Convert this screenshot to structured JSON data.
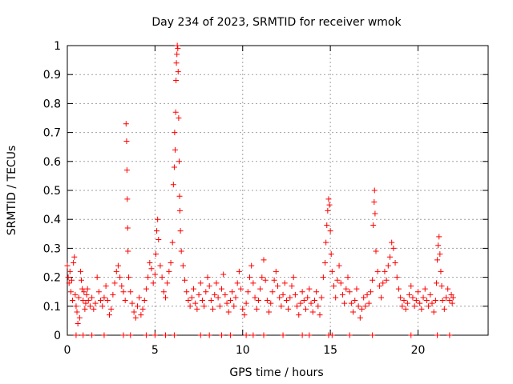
{
  "chart_data": {
    "type": "scatter",
    "title": "Day 234 of 2023, SRMTID for receiver wmok",
    "xlabel": "GPS time / hours",
    "ylabel": "SRMTID / TECUs",
    "xlim": [
      0,
      24
    ],
    "ylim": [
      0,
      1
    ],
    "grid": true,
    "x_ticks": [
      0,
      5,
      10,
      15,
      20
    ],
    "x_tick_labels": [
      "0",
      "5",
      "10",
      "15",
      "20"
    ],
    "y_ticks": [
      0,
      0.1,
      0.2,
      0.3,
      0.4,
      0.5,
      0.6,
      0.7,
      0.8,
      0.9,
      1
    ],
    "y_tick_labels": [
      "0",
      "0.1",
      "0.2",
      "0.3",
      "0.4",
      "0.5",
      "0.6",
      "0.7",
      "0.8",
      "0.9",
      "1"
    ],
    "marker": "+",
    "color": "#ff0000",
    "series": [
      {
        "name": "SRMTID",
        "points": [
          [
            0.0,
            0.24
          ],
          [
            0.05,
            0.2
          ],
          [
            0.1,
            0.18
          ],
          [
            0.15,
            0.22
          ],
          [
            0.2,
            0.15
          ],
          [
            0.25,
            0.19
          ],
          [
            0.3,
            0.12
          ],
          [
            0.35,
            0.25
          ],
          [
            0.4,
            0.27
          ],
          [
            0.45,
            0.14
          ],
          [
            0.5,
            0.1
          ],
          [
            0.55,
            0.08
          ],
          [
            0.6,
            0.04
          ],
          [
            0.65,
            0.13
          ],
          [
            0.7,
            0.06
          ],
          [
            0.75,
            0.22
          ],
          [
            0.8,
            0.19
          ],
          [
            0.85,
            0.16
          ],
          [
            0.9,
            0.12
          ],
          [
            0.95,
            0.15
          ],
          [
            1.0,
            0.09
          ],
          [
            1.05,
            0.11
          ],
          [
            1.1,
            0.14
          ],
          [
            1.15,
            0.16
          ],
          [
            1.2,
            0.12
          ],
          [
            1.3,
            0.1
          ],
          [
            1.4,
            0.13
          ],
          [
            1.5,
            0.09
          ],
          [
            1.6,
            0.11
          ],
          [
            1.7,
            0.2
          ],
          [
            1.8,
            0.15
          ],
          [
            1.9,
            0.12
          ],
          [
            2.0,
            0.1
          ],
          [
            2.1,
            0.13
          ],
          [
            2.2,
            0.17
          ],
          [
            2.3,
            0.12
          ],
          [
            2.4,
            0.07
          ],
          [
            2.5,
            0.09
          ],
          [
            2.6,
            0.14
          ],
          [
            2.7,
            0.18
          ],
          [
            2.8,
            0.22
          ],
          [
            2.9,
            0.24
          ],
          [
            3.0,
            0.2
          ],
          [
            3.1,
            0.17
          ],
          [
            3.2,
            0.15
          ],
          [
            3.3,
            0.12
          ],
          [
            3.35,
            0.73
          ],
          [
            3.38,
            0.67
          ],
          [
            3.4,
            0.57
          ],
          [
            3.42,
            0.47
          ],
          [
            3.44,
            0.37
          ],
          [
            3.46,
            0.29
          ],
          [
            3.5,
            0.2
          ],
          [
            3.6,
            0.15
          ],
          [
            3.7,
            0.11
          ],
          [
            3.8,
            0.08
          ],
          [
            3.9,
            0.06
          ],
          [
            4.0,
            0.1
          ],
          [
            4.1,
            0.13
          ],
          [
            4.2,
            0.07
          ],
          [
            4.3,
            0.09
          ],
          [
            4.4,
            0.12
          ],
          [
            4.5,
            0.16
          ],
          [
            4.6,
            0.2
          ],
          [
            4.7,
            0.25
          ],
          [
            4.8,
            0.23
          ],
          [
            4.9,
            0.18
          ],
          [
            5.0,
            0.21
          ],
          [
            5.05,
            0.28
          ],
          [
            5.1,
            0.36
          ],
          [
            5.15,
            0.4
          ],
          [
            5.2,
            0.33
          ],
          [
            5.3,
            0.24
          ],
          [
            5.4,
            0.2
          ],
          [
            5.5,
            0.15
          ],
          [
            5.6,
            0.13
          ],
          [
            5.7,
            0.18
          ],
          [
            5.8,
            0.22
          ],
          [
            5.9,
            0.25
          ],
          [
            6.0,
            0.32
          ],
          [
            6.05,
            0.52
          ],
          [
            6.1,
            0.58
          ],
          [
            6.12,
            0.7
          ],
          [
            6.15,
            0.64
          ],
          [
            6.18,
            0.77
          ],
          [
            6.2,
            0.88
          ],
          [
            6.22,
            0.94
          ],
          [
            6.25,
            0.97
          ],
          [
            6.27,
            1.0
          ],
          [
            6.3,
            0.99
          ],
          [
            6.32,
            0.91
          ],
          [
            6.35,
            0.75
          ],
          [
            6.38,
            0.6
          ],
          [
            6.4,
            0.48
          ],
          [
            6.42,
            0.43
          ],
          [
            6.45,
            0.36
          ],
          [
            6.5,
            0.29
          ],
          [
            6.6,
            0.24
          ],
          [
            6.7,
            0.19
          ],
          [
            6.8,
            0.15
          ],
          [
            6.9,
            0.12
          ],
          [
            7.0,
            0.1
          ],
          [
            7.1,
            0.13
          ],
          [
            7.2,
            0.16
          ],
          [
            7.3,
            0.11
          ],
          [
            7.4,
            0.09
          ],
          [
            7.5,
            0.14
          ],
          [
            7.6,
            0.18
          ],
          [
            7.7,
            0.12
          ],
          [
            7.8,
            0.1
          ],
          [
            7.9,
            0.15
          ],
          [
            8.0,
            0.2
          ],
          [
            8.1,
            0.17
          ],
          [
            8.2,
            0.12
          ],
          [
            8.3,
            0.09
          ],
          [
            8.4,
            0.14
          ],
          [
            8.5,
            0.18
          ],
          [
            8.6,
            0.13
          ],
          [
            8.7,
            0.1
          ],
          [
            8.8,
            0.16
          ],
          [
            8.9,
            0.21
          ],
          [
            9.0,
            0.14
          ],
          [
            9.1,
            0.11
          ],
          [
            9.2,
            0.08
          ],
          [
            9.3,
            0.12
          ],
          [
            9.4,
            0.15
          ],
          [
            9.5,
            0.1
          ],
          [
            9.6,
            0.13
          ],
          [
            9.7,
            0.18
          ],
          [
            9.8,
            0.22
          ],
          [
            9.9,
            0.16
          ],
          [
            10.0,
            0.09
          ],
          [
            10.1,
            0.07
          ],
          [
            10.2,
            0.11
          ],
          [
            10.3,
            0.15
          ],
          [
            10.4,
            0.2
          ],
          [
            10.5,
            0.24
          ],
          [
            10.6,
            0.18
          ],
          [
            10.7,
            0.13
          ],
          [
            10.8,
            0.09
          ],
          [
            10.9,
            0.12
          ],
          [
            11.0,
            0.16
          ],
          [
            11.1,
            0.2
          ],
          [
            11.2,
            0.26
          ],
          [
            11.3,
            0.19
          ],
          [
            11.4,
            0.12
          ],
          [
            11.5,
            0.08
          ],
          [
            11.6,
            0.11
          ],
          [
            11.7,
            0.15
          ],
          [
            11.8,
            0.19
          ],
          [
            11.9,
            0.22
          ],
          [
            12.0,
            0.17
          ],
          [
            12.1,
            0.13
          ],
          [
            12.2,
            0.1
          ],
          [
            12.3,
            0.14
          ],
          [
            12.4,
            0.18
          ],
          [
            12.5,
            0.12
          ],
          [
            12.6,
            0.09
          ],
          [
            12.7,
            0.13
          ],
          [
            12.8,
            0.17
          ],
          [
            12.9,
            0.2
          ],
          [
            13.0,
            0.14
          ],
          [
            13.1,
            0.1
          ],
          [
            13.2,
            0.07
          ],
          [
            13.3,
            0.11
          ],
          [
            13.4,
            0.15
          ],
          [
            13.5,
            0.12
          ],
          [
            13.6,
            0.09
          ],
          [
            13.7,
            0.13
          ],
          [
            13.8,
            0.16
          ],
          [
            13.9,
            0.11
          ],
          [
            14.0,
            0.08
          ],
          [
            14.1,
            0.12
          ],
          [
            14.2,
            0.15
          ],
          [
            14.3,
            0.1
          ],
          [
            14.4,
            0.07
          ],
          [
            14.5,
            0.13
          ],
          [
            14.6,
            0.2
          ],
          [
            14.7,
            0.25
          ],
          [
            14.75,
            0.32
          ],
          [
            14.8,
            0.38
          ],
          [
            14.85,
            0.43
          ],
          [
            14.9,
            0.47
          ],
          [
            14.95,
            0.45
          ],
          [
            15.0,
            0.36
          ],
          [
            15.05,
            0.28
          ],
          [
            15.1,
            0.22
          ],
          [
            15.2,
            0.17
          ],
          [
            15.3,
            0.13
          ],
          [
            15.4,
            0.19
          ],
          [
            15.5,
            0.24
          ],
          [
            15.6,
            0.18
          ],
          [
            15.7,
            0.14
          ],
          [
            15.8,
            0.11
          ],
          [
            15.9,
            0.16
          ],
          [
            16.0,
            0.2
          ],
          [
            16.1,
            0.15
          ],
          [
            16.2,
            0.11
          ],
          [
            16.3,
            0.08
          ],
          [
            16.4,
            0.12
          ],
          [
            16.5,
            0.16
          ],
          [
            16.6,
            0.1
          ],
          [
            16.7,
            0.06
          ],
          [
            16.8,
            0.09
          ],
          [
            16.9,
            0.13
          ],
          [
            17.0,
            0.1
          ],
          [
            17.1,
            0.14
          ],
          [
            17.2,
            0.11
          ],
          [
            17.3,
            0.15
          ],
          [
            17.4,
            0.19
          ],
          [
            17.45,
            0.38
          ],
          [
            17.5,
            0.46
          ],
          [
            17.52,
            0.5
          ],
          [
            17.55,
            0.42
          ],
          [
            17.6,
            0.29
          ],
          [
            17.7,
            0.22
          ],
          [
            17.8,
            0.17
          ],
          [
            17.9,
            0.13
          ],
          [
            18.0,
            0.18
          ],
          [
            18.1,
            0.22
          ],
          [
            18.2,
            0.19
          ],
          [
            18.3,
            0.24
          ],
          [
            18.4,
            0.27
          ],
          [
            18.5,
            0.32
          ],
          [
            18.6,
            0.3
          ],
          [
            18.7,
            0.25
          ],
          [
            18.8,
            0.2
          ],
          [
            18.9,
            0.16
          ],
          [
            19.0,
            0.13
          ],
          [
            19.1,
            0.1
          ],
          [
            19.2,
            0.12
          ],
          [
            19.3,
            0.09
          ],
          [
            19.4,
            0.11
          ],
          [
            19.5,
            0.14
          ],
          [
            19.6,
            0.17
          ],
          [
            19.7,
            0.13
          ],
          [
            19.8,
            0.1
          ],
          [
            19.9,
            0.12
          ],
          [
            20.0,
            0.15
          ],
          [
            20.1,
            0.11
          ],
          [
            20.2,
            0.09
          ],
          [
            20.3,
            0.13
          ],
          [
            20.4,
            0.16
          ],
          [
            20.5,
            0.12
          ],
          [
            20.6,
            0.1
          ],
          [
            20.7,
            0.14
          ],
          [
            20.8,
            0.11
          ],
          [
            20.9,
            0.08
          ],
          [
            21.0,
            0.12
          ],
          [
            21.05,
            0.18
          ],
          [
            21.1,
            0.26
          ],
          [
            21.15,
            0.31
          ],
          [
            21.2,
            0.34
          ],
          [
            21.25,
            0.28
          ],
          [
            21.3,
            0.22
          ],
          [
            21.35,
            0.17
          ],
          [
            21.4,
            0.12
          ],
          [
            21.5,
            0.09
          ],
          [
            21.6,
            0.13
          ],
          [
            21.7,
            0.16
          ],
          [
            21.8,
            0.12
          ],
          [
            21.9,
            0.14
          ],
          [
            21.95,
            0.11
          ],
          [
            22.0,
            0.13
          ]
        ]
      }
    ],
    "zero_points_x": [
      0.5,
      0.9,
      1.4,
      2.1,
      3.2,
      3.6,
      4.5,
      5.0,
      5.6,
      6.1,
      7.6,
      8.1,
      8.8,
      9.3,
      10.2,
      10.6,
      11.2,
      12.3,
      13.4,
      13.8,
      14.9,
      15.1,
      16.1,
      17.4,
      19.6,
      21.1,
      21.8
    ]
  }
}
